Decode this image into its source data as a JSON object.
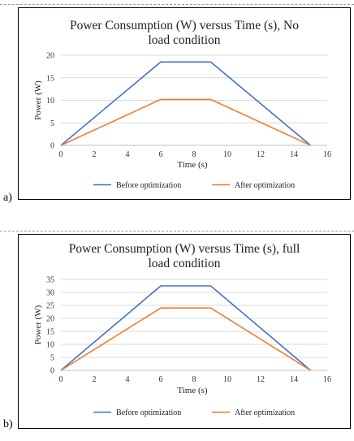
{
  "chart_data": [
    {
      "type": "line",
      "panel_label": "a)",
      "title": [
        "Power Consumption (W) versus Time (s), No",
        "load condition"
      ],
      "xlabel": "Time (s)",
      "ylabel": "Power (W)",
      "xlim": [
        0,
        16
      ],
      "ylim": [
        0,
        20
      ],
      "xticks": [
        "0",
        "2",
        "4",
        "6",
        "8",
        "10",
        "12",
        "14",
        "16"
      ],
      "yticks": [
        "0",
        "5",
        "10",
        "15",
        "20"
      ],
      "grid": true,
      "legend": "bottom",
      "series": [
        {
          "name": "Before optimization",
          "color": "#4472c4",
          "x": [
            0,
            6,
            9,
            15
          ],
          "y": [
            0,
            18.5,
            18.5,
            0
          ]
        },
        {
          "name": "After optimization",
          "color": "#ed7d31",
          "x": [
            0,
            6,
            9,
            15
          ],
          "y": [
            0,
            10.2,
            10.2,
            0
          ]
        }
      ]
    },
    {
      "type": "line",
      "panel_label": "b)",
      "title": [
        "Power Consumption (W) versus Time (s), full",
        "load condition"
      ],
      "xlabel": "Time (s)",
      "ylabel": "Power (W)",
      "xlim": [
        0,
        16
      ],
      "ylim": [
        0,
        35
      ],
      "xticks": [
        "0",
        "2",
        "4",
        "6",
        "8",
        "10",
        "12",
        "14",
        "16"
      ],
      "yticks": [
        "0",
        "5",
        "10",
        "15",
        "20",
        "25",
        "30",
        "35"
      ],
      "grid": true,
      "legend": "bottom",
      "series": [
        {
          "name": "Before optimization",
          "color": "#4472c4",
          "x": [
            0,
            6,
            9,
            15
          ],
          "y": [
            0,
            32.5,
            32.5,
            0
          ]
        },
        {
          "name": "After optimization",
          "color": "#ed7d31",
          "x": [
            0,
            6,
            9,
            15
          ],
          "y": [
            0,
            24,
            24,
            0
          ]
        }
      ]
    }
  ],
  "colors": {
    "grid": "#d9d9d9",
    "axis": "#bfbfbf",
    "border": "#000000"
  }
}
